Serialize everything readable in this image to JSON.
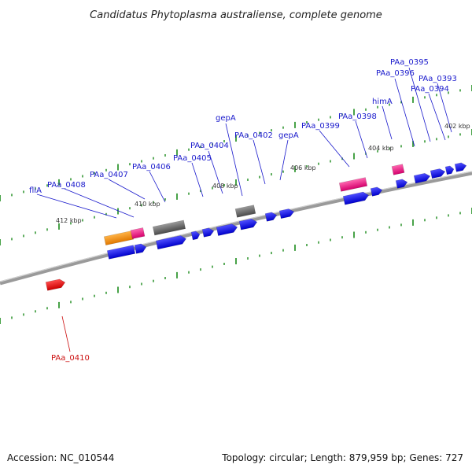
{
  "title": "Candidatus Phytoplasma australiense, complete genome",
  "footer": {
    "accession": "Accession: NC_010544",
    "info": "Topology: circular; Length: 879,959 bp; Genes: 727"
  },
  "colors": {
    "backbone": "#888888",
    "forward_gene": "#1a1ae6",
    "reverse_gene": "#e6007a",
    "other_gene": "#666666",
    "orange_gene": "#f28c00",
    "red_gene": "#e60000",
    "tick": "#1a8a1a",
    "label_forward": "#1a1acc",
    "label_reverse": "#cc1111"
  },
  "scale_labels": [
    "412 kbp",
    "410 kbp",
    "408 kbp",
    "406 kbp",
    "404 kbp",
    "402 kbp"
  ],
  "gene_labels": [
    "fliA",
    "PAa_0408",
    "PAa_0407",
    "PAa_0406",
    "PAa_0405",
    "PAa_0404",
    "gepA",
    "PAa_0402",
    "gepA",
    "PAa_0399",
    "PAa_0398",
    "himA",
    "PAa_0396",
    "PAa_0395",
    "PAa_0394",
    "PAa_0393"
  ],
  "reverse_labels": [
    "PAa_0410"
  ]
}
